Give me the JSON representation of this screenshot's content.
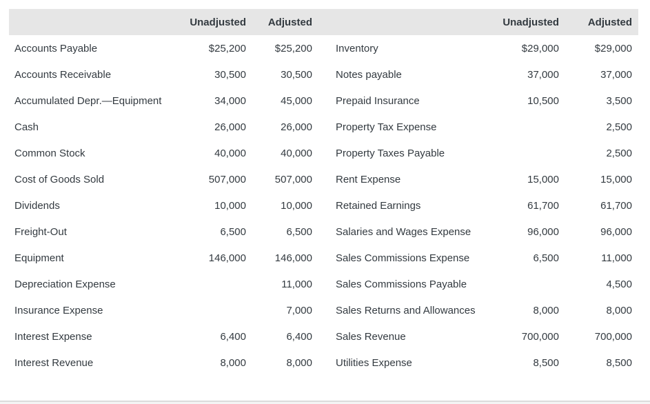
{
  "table": {
    "headers": {
      "left_label": "",
      "left_unadjusted": "Unadjusted",
      "left_adjusted": "Adjusted",
      "right_label": "",
      "right_unadjusted": "Unadjusted",
      "right_adjusted": "Adjusted"
    },
    "rows": [
      {
        "l_name": "Accounts Payable",
        "l_unadj": "$25,200",
        "l_adj": "$25,200",
        "r_name": "Inventory",
        "r_unadj": "$29,000",
        "r_adj": "$29,000"
      },
      {
        "l_name": "Accounts Receivable",
        "l_unadj": "30,500",
        "l_adj": "30,500",
        "r_name": "Notes payable",
        "r_unadj": "37,000",
        "r_adj": "37,000"
      },
      {
        "l_name": "Accumulated Depr.—Equipment",
        "l_unadj": "34,000",
        "l_adj": "45,000",
        "r_name": "Prepaid Insurance",
        "r_unadj": "10,500",
        "r_adj": "3,500"
      },
      {
        "l_name": "Cash",
        "l_unadj": "26,000",
        "l_adj": "26,000",
        "r_name": "Property Tax Expense",
        "r_unadj": "",
        "r_adj": "2,500"
      },
      {
        "l_name": "Common Stock",
        "l_unadj": "40,000",
        "l_adj": "40,000",
        "r_name": "Property Taxes Payable",
        "r_unadj": "",
        "r_adj": "2,500"
      },
      {
        "l_name": "Cost of Goods Sold",
        "l_unadj": "507,000",
        "l_adj": "507,000",
        "r_name": "Rent Expense",
        "r_unadj": "15,000",
        "r_adj": "15,000"
      },
      {
        "l_name": "Dividends",
        "l_unadj": "10,000",
        "l_adj": "10,000",
        "r_name": "Retained Earnings",
        "r_unadj": "61,700",
        "r_adj": "61,700"
      },
      {
        "l_name": "Freight-Out",
        "l_unadj": "6,500",
        "l_adj": "6,500",
        "r_name": "Salaries and Wages Expense",
        "r_unadj": "96,000",
        "r_adj": "96,000"
      },
      {
        "l_name": "Equipment",
        "l_unadj": "146,000",
        "l_adj": "146,000",
        "r_name": "Sales Commissions Expense",
        "r_unadj": "6,500",
        "r_adj": "11,000"
      },
      {
        "l_name": "Depreciation Expense",
        "l_unadj": "",
        "l_adj": "11,000",
        "r_name": "Sales Commissions Payable",
        "r_unadj": "",
        "r_adj": "4,500"
      },
      {
        "l_name": "Insurance Expense",
        "l_unadj": "",
        "l_adj": "7,000",
        "r_name": "Sales Returns and Allowances",
        "r_unadj": "8,000",
        "r_adj": "8,000"
      },
      {
        "l_name": "Interest Expense",
        "l_unadj": "6,400",
        "l_adj": "6,400",
        "r_name": "Sales Revenue",
        "r_unadj": "700,000",
        "r_adj": "700,000"
      },
      {
        "l_name": "Interest Revenue",
        "l_unadj": "8,000",
        "l_adj": "8,000",
        "r_name": "Utilities Expense",
        "r_unadj": "8,500",
        "r_adj": "8,500"
      }
    ]
  },
  "colors": {
    "header_bg": "#e6e6e6",
    "text": "#333a40",
    "bottom_rule": "#dcdcdc"
  }
}
